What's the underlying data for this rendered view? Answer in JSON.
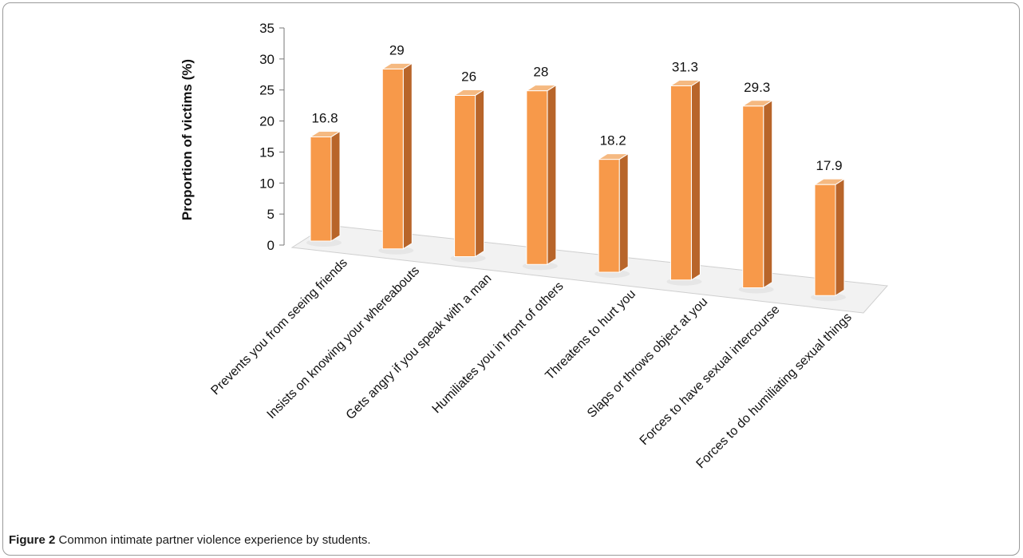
{
  "chart_data": {
    "type": "bar",
    "style": "3d-columns",
    "title": "",
    "xlabel": "",
    "ylabel": "Proportion of victims (%)",
    "ylim": [
      0,
      35
    ],
    "yticks": [
      0,
      5,
      10,
      15,
      20,
      25,
      30,
      35
    ],
    "grid": false,
    "categories": [
      "Prevents you from seeing friends",
      "Insists on knowing your whereabouts",
      "Gets angry if you speak with a man",
      "Humiliates you in front of others",
      "Threatens to hurt you",
      "Slaps or throws object at you",
      "Forces to have sexual intercourse",
      "Forces to do humiliating sexual things"
    ],
    "values": [
      16.8,
      29,
      26,
      28,
      18.2,
      31.3,
      29.3,
      17.9
    ],
    "data_labels": [
      "16.8",
      "29",
      "26",
      "28",
      "18.2",
      "31.3",
      "29.3",
      "17.9"
    ],
    "colors": {
      "front": "#F7994A",
      "side": "#B8652A",
      "top": "#F5B981",
      "edge": "#FFFFFF",
      "floor": "#F2F2F2"
    }
  },
  "caption": {
    "label": "Figure 2",
    "text": "Common intimate partner violence experience by students."
  }
}
